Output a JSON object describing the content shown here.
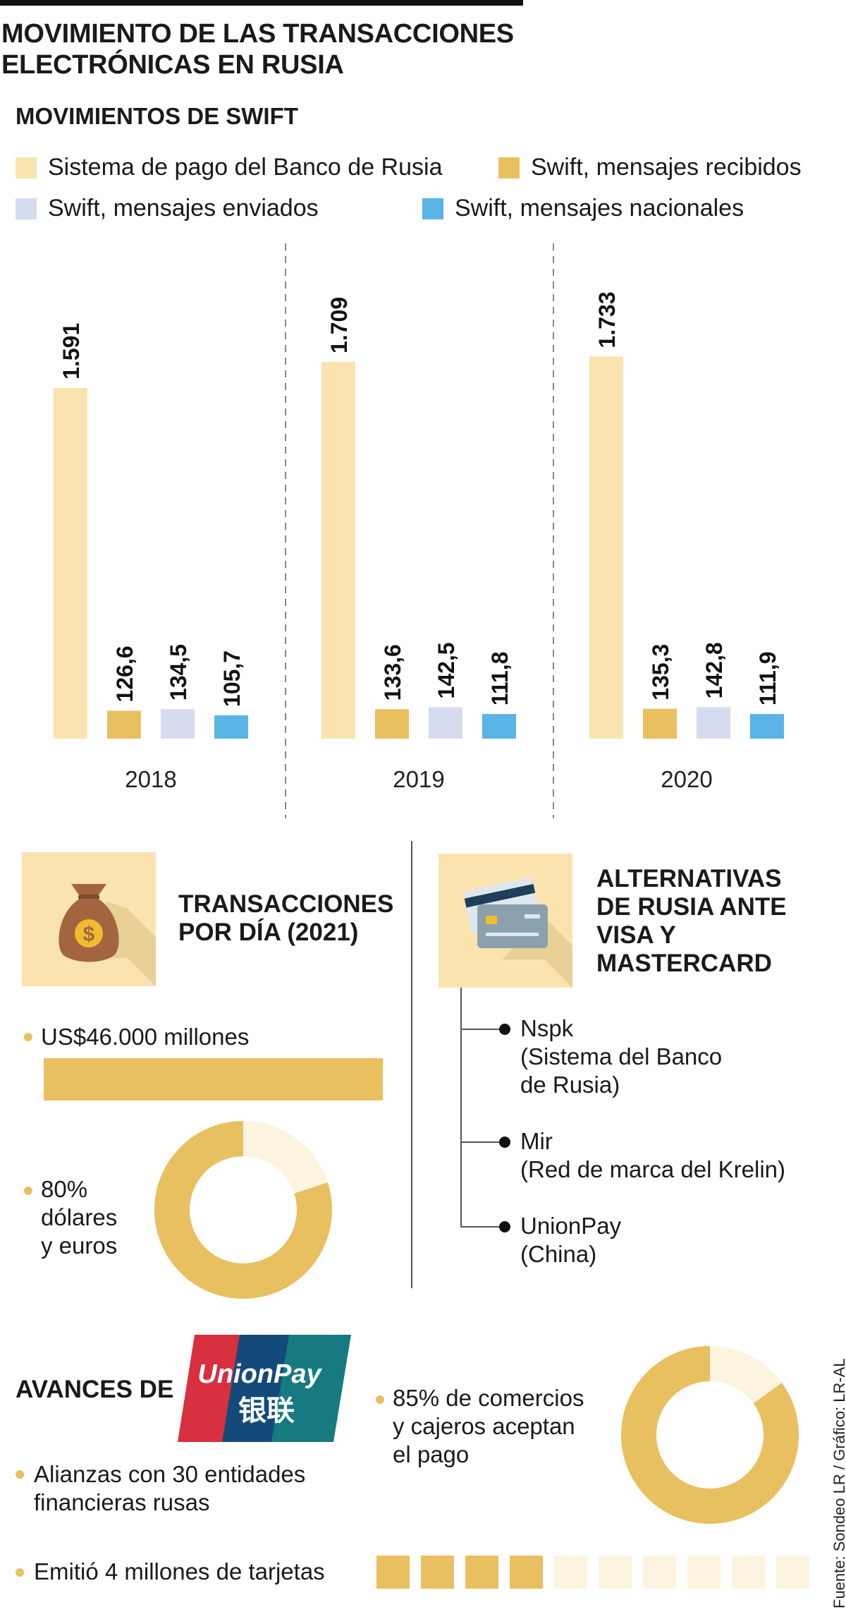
{
  "title_line1": "MOVIMIENTO DE LAS TRANSACCIONES",
  "title_line2": "ELECTRÓNICAS EN RUSIA",
  "subtitle": "MOVIMIENTOS DE SWIFT",
  "colors": {
    "sistema": "#fbe3b0",
    "recibidos": "#e8c060",
    "enviados": "#d6dcf0",
    "nacionales": "#5ab4e5"
  },
  "legend": [
    "Sistema de pago del Banco de Rusia",
    "Swift, mensajes recibidos",
    "Swift, mensajes enviados",
    "Swift, mensajes nacionales"
  ],
  "chart_data": {
    "type": "bar",
    "title": "MOVIMIENTOS DE SWIFT",
    "categories": [
      "2018",
      "2019",
      "2020"
    ],
    "series": [
      {
        "name": "Sistema de pago del Banco de Rusia",
        "values": [
          1591,
          1709,
          1733
        ],
        "labels": [
          "1.591",
          "1.709",
          "1.733"
        ]
      },
      {
        "name": "Swift, mensajes recibidos",
        "values": [
          126.6,
          133.6,
          135.3
        ],
        "labels": [
          "126,6",
          "133,6",
          "135,3"
        ]
      },
      {
        "name": "Swift, mensajes enviados",
        "values": [
          134.5,
          142.5,
          142.8
        ],
        "labels": [
          "134,5",
          "142,5",
          "142,8"
        ]
      },
      {
        "name": "Swift, mensajes nacionales",
        "values": [
          105.7,
          111.8,
          111.9
        ],
        "labels": [
          "105,7",
          "111,8",
          "111,9"
        ]
      }
    ],
    "xlabel": "",
    "ylabel": "",
    "ylim": [
      0,
      2000
    ]
  },
  "transacciones": {
    "title_line1": "TRANSACCIONES",
    "title_line2": "POR DÍA (2021)",
    "icon": "money-bag-icon",
    "amount": "US$46.000 millones",
    "pct_line1": "80%",
    "pct_line2": "dólares",
    "pct_line3": "y euros",
    "pct_value": 80
  },
  "alternativas": {
    "title_line1": "ALTERNATIVAS",
    "title_line2": "DE RUSIA ANTE",
    "title_line3": "VISA Y",
    "title_line4": "MASTERCARD",
    "icon": "credit-cards-icon",
    "items": [
      {
        "name": "Nspk",
        "desc1": "(Sistema del Banco",
        "desc2": "de Rusia)"
      },
      {
        "name": "Mir",
        "desc1": "(Red de marca del Krelin)",
        "desc2": ""
      },
      {
        "name": "UnionPay",
        "desc1": "(China)",
        "desc2": ""
      }
    ]
  },
  "avances": {
    "title": "AVANCES DE",
    "logo_text": "UnionPay",
    "logo_cn": "银联",
    "alianzas_line1": "Alianzas con 30 entidades",
    "alianzas_line2": "financieras rusas",
    "comercios_line1": "85% de comercios",
    "comercios_line2": "y cajeros aceptan",
    "comercios_line3": "el pago",
    "comercios_value": 85,
    "tarjetas": "Emitió 4 millones de tarjetas",
    "tarjetas_filled": 4,
    "tarjetas_total": 10
  },
  "fuente": "Fuente: Sondeo LR / Gráfico: LR-AL"
}
